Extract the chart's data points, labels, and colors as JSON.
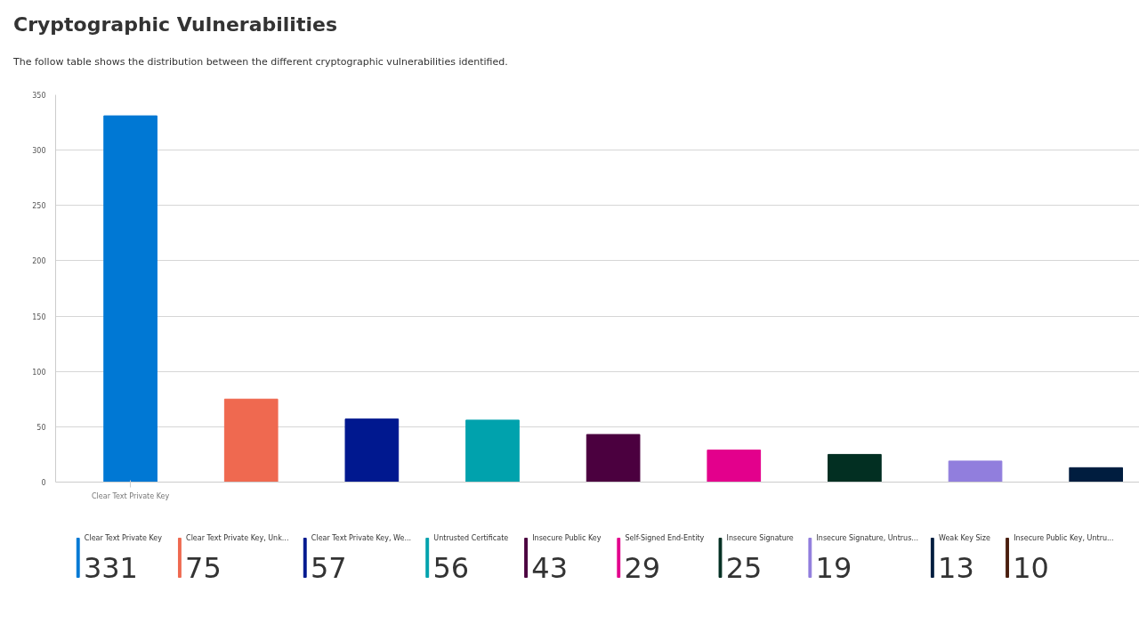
{
  "chart_data": [
    {
      "type": "bar",
      "title": "Cryptographic Vulnerabilities",
      "subtitle": "The follow table shows the distribution between the different cryptographic vulnerabilities identified.",
      "categories": [
        "Clear Text Private Key",
        null,
        null,
        null,
        null,
        null,
        null,
        null,
        null
      ],
      "values": [
        331,
        75,
        57,
        56,
        43,
        29,
        25,
        19,
        13
      ],
      "colors": [
        "#0078d4",
        "#ef6950",
        "#00188f",
        "#00a2ad",
        "#4b003f",
        "#e3008c",
        "#022f22",
        "#917edd",
        "#001d3f"
      ],
      "ylim": [
        0,
        350
      ],
      "yticks": [
        0,
        50,
        100,
        150,
        200,
        250,
        300,
        350
      ],
      "grid": "y"
    },
    {
      "type": "other",
      "categories": [
        "Clear Text Private Key",
        "Clear Text Private Key, Unk...",
        "Clear Text Private Key, We...",
        "Untrusted Certificate",
        "Insecure Public Key",
        "Self-Signed End-Entity",
        "Insecure Signature",
        "Insecure Signature, Untrus...",
        "Weak Key Size",
        "Insecure Public Key, Untru..."
      ],
      "values": [
        331,
        75,
        57,
        56,
        43,
        29,
        25,
        19,
        13,
        10
      ],
      "colors": [
        "#0078d4",
        "#ef6950",
        "#00188f",
        "#00a2ad",
        "#4b003f",
        "#e3008c",
        "#022f22",
        "#917edd",
        "#001d3f",
        "#4a1e0f"
      ],
      "data_labels": true
    }
  ]
}
